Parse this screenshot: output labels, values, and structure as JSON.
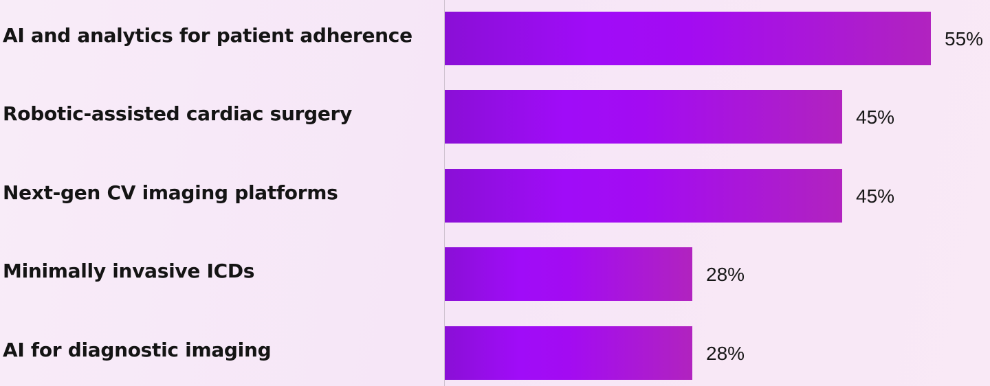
{
  "chart_data": {
    "type": "bar",
    "orientation": "horizontal",
    "title": "",
    "xlabel": "",
    "ylabel": "",
    "categories": [
      "AI and analytics for patient adherence",
      "Robotic-assisted cardiac surgery",
      "Next-gen CV imaging platforms",
      "Minimally invasive ICDs",
      "AI for diagnostic imaging"
    ],
    "values": [
      55,
      45,
      45,
      28,
      28
    ],
    "value_labels": [
      "55%",
      "45%",
      "45%",
      "28%",
      "28%"
    ],
    "xlim": [
      0,
      62
    ],
    "grid": false,
    "legend": "none",
    "colors": {
      "bar_start": "#8a0fd6",
      "bar_mid": "#a00cf8",
      "bar_end": "#b123bf",
      "axis": "#cfc2d0",
      "text": "#141414"
    }
  }
}
